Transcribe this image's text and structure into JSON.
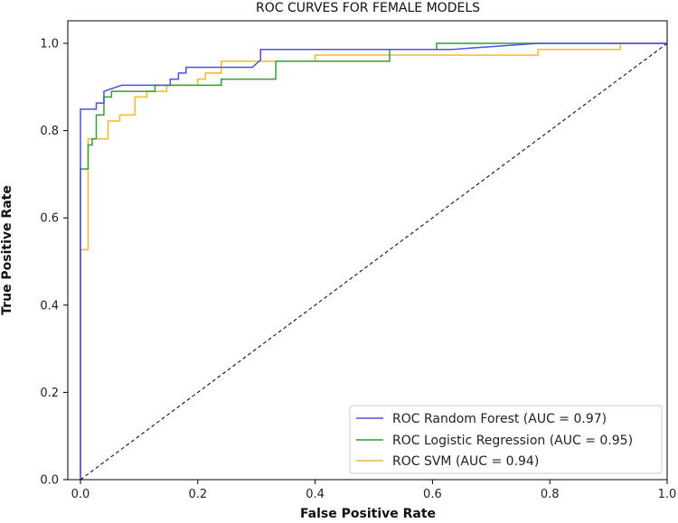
{
  "chart_data": {
    "type": "line",
    "title": "ROC CURVES FOR FEMALE MODELS",
    "xlabel": "False Positive Rate",
    "ylabel": "True Positive Rate",
    "xlim": [
      0.0,
      1.0
    ],
    "ylim": [
      0.0,
      1.0
    ],
    "xticks": [
      0.0,
      0.2,
      0.4,
      0.6,
      0.8,
      1.0
    ],
    "yticks": [
      0.0,
      0.2,
      0.4,
      0.6,
      0.8,
      1.0
    ],
    "xtick_labels": [
      "0.0",
      "0.2",
      "0.4",
      "0.6",
      "0.8",
      "1.0"
    ],
    "ytick_labels": [
      "0.0",
      "0.2",
      "0.4",
      "0.6",
      "0.8",
      "1.0"
    ],
    "grid": false,
    "legend_position": "bottom-right",
    "series": [
      {
        "name": "ROC Random Forest (AUC = 0.97)",
        "color": "#4f4fe0",
        "x": [
          0,
          0,
          0.027,
          0.027,
          0.04,
          0.04,
          0.07,
          0.153,
          0.153,
          0.167,
          0.167,
          0.18,
          0.18,
          0.293,
          0.307,
          0.307,
          0.633,
          0.78,
          1.0
        ],
        "y": [
          0,
          0.849,
          0.849,
          0.863,
          0.863,
          0.89,
          0.904,
          0.904,
          0.918,
          0.918,
          0.932,
          0.932,
          0.945,
          0.945,
          0.962,
          0.986,
          0.986,
          1.0,
          1.0
        ]
      },
      {
        "name": "ROC Logistic Regression (AUC = 0.95)",
        "color": "#3a9a3a",
        "x": [
          0,
          0,
          0.013,
          0.013,
          0.02,
          0.02,
          0.027,
          0.027,
          0.04,
          0.04,
          0.053,
          0.053,
          0.127,
          0.127,
          0.24,
          0.24,
          0.333,
          0.333,
          0.527,
          0.527,
          0.607,
          0.607,
          1.0
        ],
        "y": [
          0,
          0.712,
          0.712,
          0.767,
          0.767,
          0.781,
          0.781,
          0.836,
          0.836,
          0.877,
          0.877,
          0.89,
          0.89,
          0.904,
          0.904,
          0.918,
          0.918,
          0.959,
          0.959,
          0.986,
          0.986,
          1.0,
          1.0
        ]
      },
      {
        "name": "ROC SVM (AUC = 0.94)",
        "color": "#f5b82e",
        "x": [
          0,
          0,
          0.013,
          0.013,
          0.02,
          0.02,
          0.047,
          0.047,
          0.053,
          0.053,
          0.067,
          0.067,
          0.093,
          0.093,
          0.113,
          0.113,
          0.147,
          0.147,
          0.2,
          0.2,
          0.213,
          0.213,
          0.24,
          0.24,
          0.4,
          0.4,
          0.78,
          0.78,
          0.92,
          0.92,
          1.0
        ],
        "y": [
          0,
          0.527,
          0.527,
          0.781,
          0.781,
          0.781,
          0.781,
          0.822,
          0.822,
          0.822,
          0.822,
          0.836,
          0.836,
          0.877,
          0.877,
          0.89,
          0.89,
          0.904,
          0.904,
          0.918,
          0.918,
          0.932,
          0.932,
          0.959,
          0.959,
          0.973,
          0.973,
          0.986,
          0.986,
          1.0,
          1.0
        ]
      }
    ],
    "diagonal": {
      "name": "chance-line",
      "color": "#222222",
      "x": [
        0,
        1
      ],
      "y": [
        0,
        1
      ]
    }
  }
}
